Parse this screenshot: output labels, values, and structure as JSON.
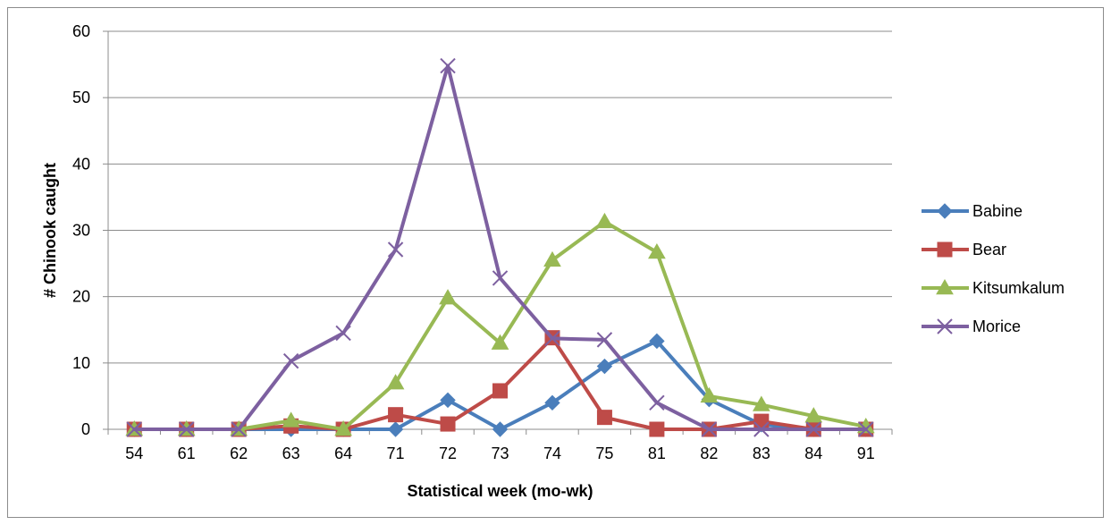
{
  "chart_data": {
    "type": "line",
    "title": "",
    "xlabel": "Statistical week (mo-wk)",
    "ylabel": "# Chinook caught",
    "categories": [
      "54",
      "61",
      "62",
      "63",
      "64",
      "71",
      "72",
      "73",
      "74",
      "75",
      "81",
      "82",
      "83",
      "84",
      "91"
    ],
    "ylim": [
      0,
      60
    ],
    "yticks": [
      0,
      10,
      20,
      30,
      40,
      50,
      60
    ],
    "grid": "horizontal",
    "legend_position": "right",
    "series": [
      {
        "name": "Babine",
        "color": "#4a7ebb",
        "marker": "diamond",
        "values": [
          0,
          0,
          0,
          0,
          0,
          0,
          4.4,
          0,
          4,
          9.5,
          13.3,
          4.5,
          0.7,
          0,
          0
        ]
      },
      {
        "name": "Bear",
        "color": "#be4b48",
        "marker": "square",
        "values": [
          0,
          0,
          0,
          0.5,
          0,
          2.2,
          0.8,
          5.8,
          13.8,
          1.8,
          0,
          0,
          1.2,
          0,
          0
        ]
      },
      {
        "name": "Kitsumkalum",
        "color": "#98b954",
        "marker": "triangle",
        "values": [
          0,
          0,
          0,
          1.3,
          0,
          7,
          19.8,
          13,
          25.5,
          31.3,
          26.7,
          5,
          3.7,
          2,
          0.4
        ]
      },
      {
        "name": "Morice",
        "color": "#7d60a0",
        "marker": "x",
        "values": [
          0,
          0,
          0,
          10.3,
          14.5,
          27.1,
          54.8,
          22.8,
          13.7,
          13.5,
          4,
          0,
          0,
          0,
          0
        ]
      }
    ]
  }
}
